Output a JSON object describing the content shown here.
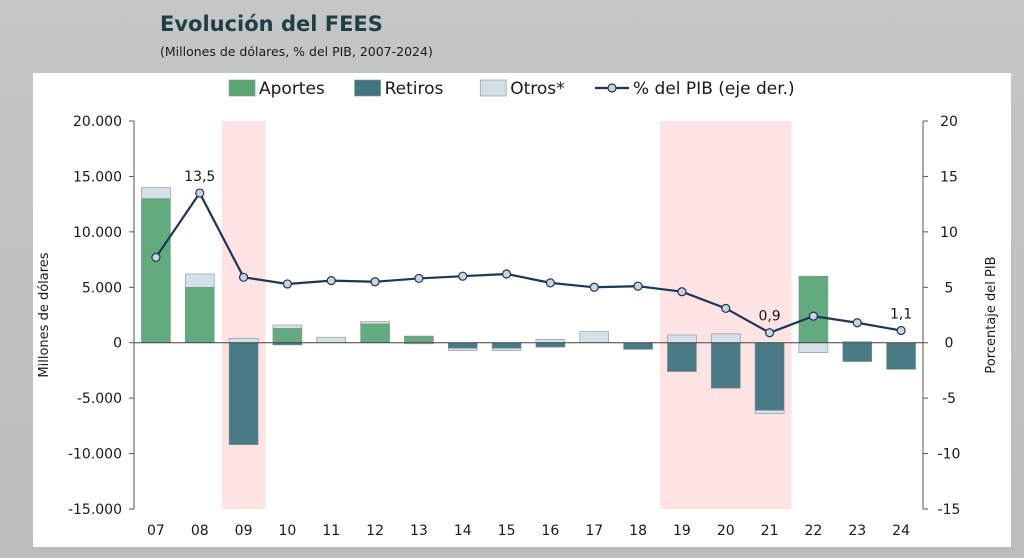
{
  "header": {
    "title": "Evolución del FEES",
    "subtitle": "(Millones de dólares, % del PIB, 2007-2024)"
  },
  "chart_data": {
    "type": "bar",
    "categories": [
      "07",
      "08",
      "09",
      "10",
      "11",
      "12",
      "13",
      "14",
      "15",
      "16",
      "17",
      "18",
      "19",
      "20",
      "21",
      "22",
      "23",
      "24"
    ],
    "series": [
      {
        "name": "Aportes",
        "color": "#5aa677",
        "values": [
          13000,
          5000,
          0,
          1300,
          0,
          1700,
          600,
          0,
          0,
          0,
          0,
          0,
          0,
          0,
          0,
          6000,
          0,
          0
        ]
      },
      {
        "name": "Retiros",
        "color": "#3f7480",
        "values": [
          0,
          0,
          -9200,
          -200,
          0,
          0,
          0,
          -500,
          -500,
          -400,
          0,
          -600,
          -2600,
          -4100,
          -6100,
          0,
          -1700,
          -2400
        ]
      },
      {
        "name": "Otros*",
        "color": "#d3dfe6",
        "values": [
          1000,
          1200,
          400,
          300,
          500,
          200,
          -100,
          -200,
          -200,
          300,
          1000,
          0,
          700,
          800,
          -300,
          -900,
          100,
          0
        ]
      }
    ],
    "line": {
      "name": "% del PIB (eje der.)",
      "color": "#1f3553",
      "values": [
        7.7,
        13.5,
        5.9,
        5.3,
        5.6,
        5.5,
        5.8,
        6.0,
        6.2,
        5.4,
        5.0,
        5.1,
        4.6,
        3.1,
        0.9,
        2.4,
        1.8,
        1.1
      ]
    },
    "point_labels": [
      {
        "index": 1,
        "text": "13,5"
      },
      {
        "index": 14,
        "text": "0,9"
      },
      {
        "index": 17,
        "text": "1,1"
      }
    ],
    "left_axis": {
      "label": "Millones de dólares",
      "min": -15000,
      "max": 20000,
      "step": 5000,
      "tick_labels": [
        "-15.000",
        "-10.000",
        "-5.000",
        "0",
        "5.000",
        "10.000",
        "15.000",
        "20.000"
      ]
    },
    "right_axis": {
      "label": "Porcentaje del PIB",
      "min": -15,
      "max": 20,
      "step": 5,
      "tick_labels": [
        "-15",
        "-10",
        "-5",
        "0",
        "5",
        "10",
        "15",
        "20"
      ]
    },
    "shaded_periods": [
      {
        "from": "09",
        "to": "09",
        "color": "#fde3e3"
      },
      {
        "from": "19",
        "to": "21",
        "color": "#fde3e3"
      }
    ],
    "legend": [
      "Aportes",
      "Retiros",
      "Otros*",
      "% del PIB (eje der.)"
    ],
    "legend_position": "top",
    "grid": false
  }
}
